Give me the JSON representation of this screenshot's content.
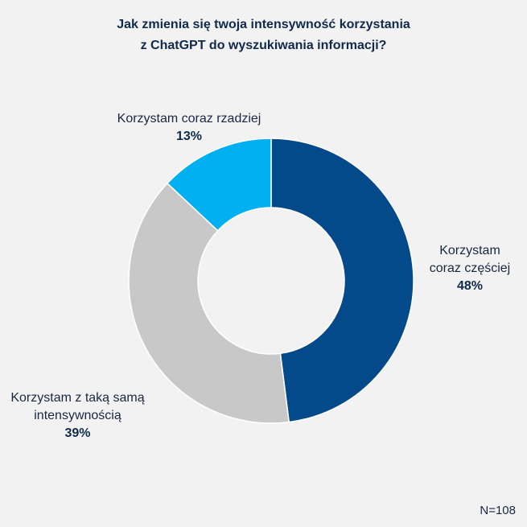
{
  "chart_data": {
    "type": "pie",
    "style": "donut",
    "title_line1": "Jak zmienia się twoja intensywność korzystania",
    "title_line2": "z ChatGPT do wyszukiwania informacji?",
    "slices": [
      {
        "label_line1": "Korzystam",
        "label_line2": "coraz częściej",
        "value": 48,
        "value_label": "48%",
        "color": "#044a8b"
      },
      {
        "label_line1": "Korzystam z taką samą",
        "label_line2": "intensywnością",
        "value": 39,
        "value_label": "39%",
        "color": "#c8c8c8"
      },
      {
        "label_line1": "Korzystam coraz rzadziej",
        "label_line2": "",
        "value": 13,
        "value_label": "13%",
        "color": "#00b0f0"
      }
    ],
    "start_angle": "12 o'clock",
    "direction": "clockwise",
    "note": "N=108"
  }
}
